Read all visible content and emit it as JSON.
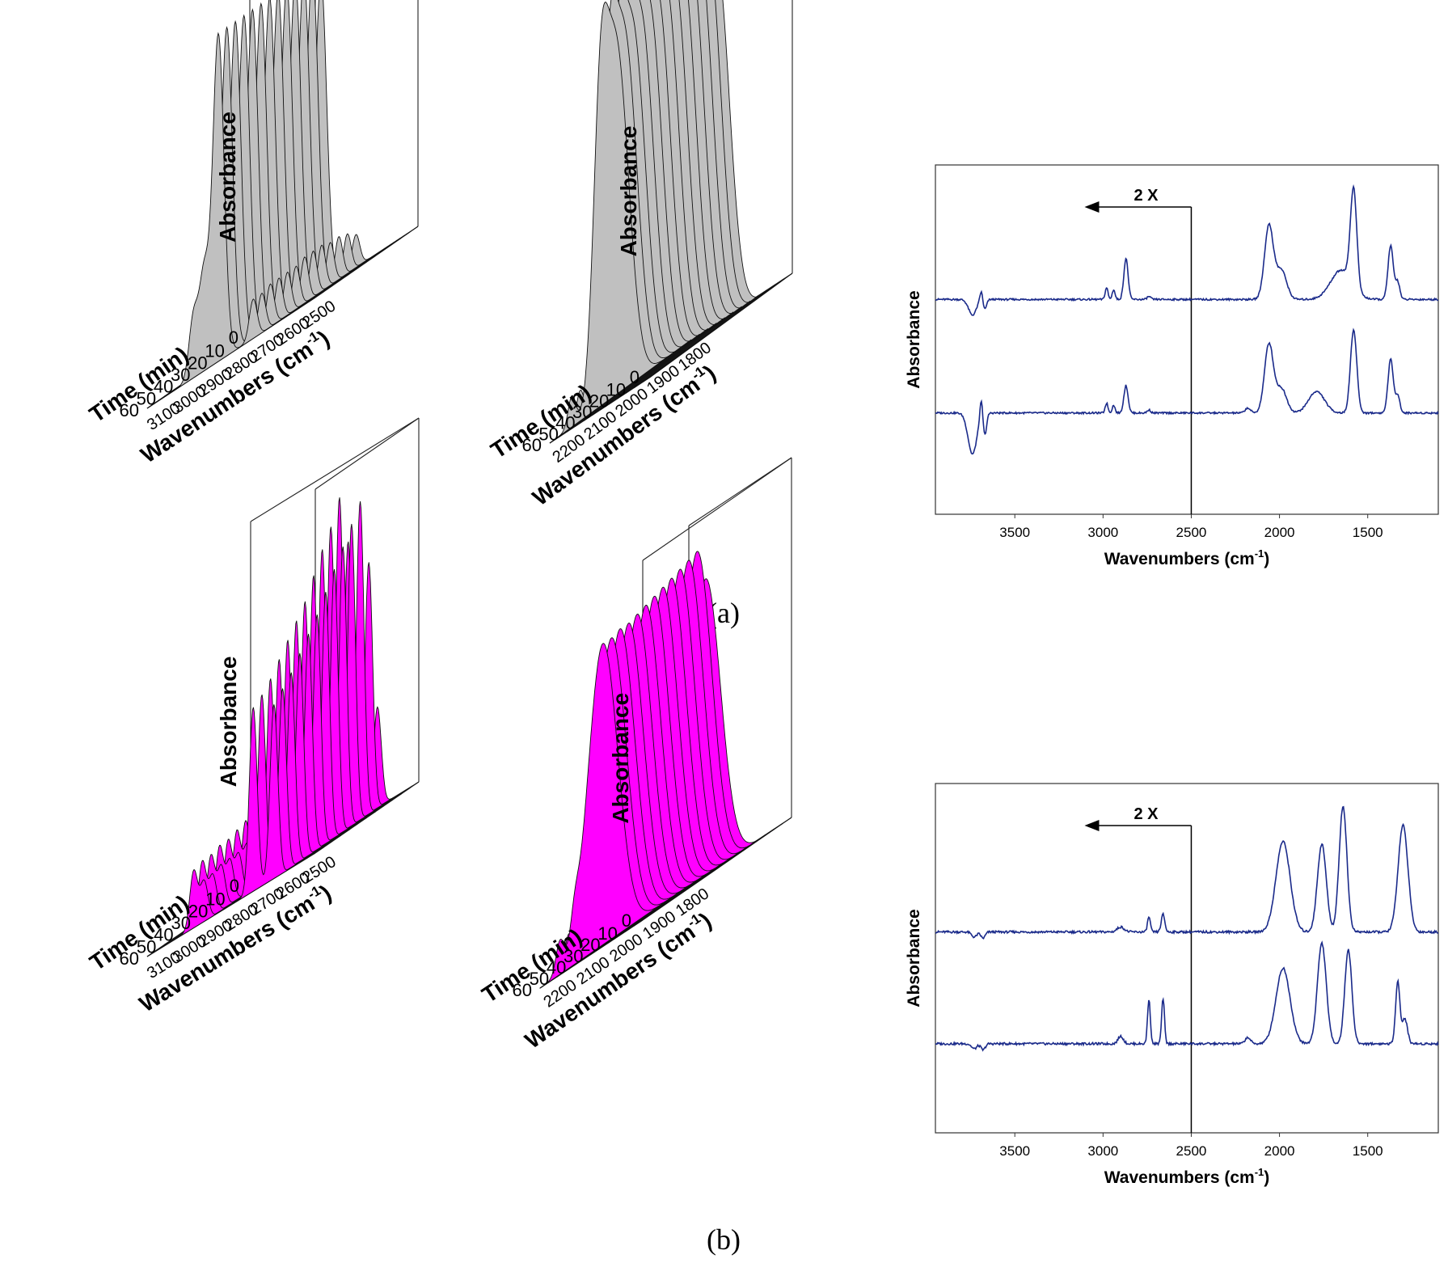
{
  "figure": {
    "captions": [
      "(a)",
      "(b)"
    ]
  },
  "chart_data": [
    {
      "id": "a1",
      "type": "waterfall-3d",
      "row": "a",
      "col": 1,
      "xlabel": "Wavenumbers (cm-1)",
      "ylabel": "Absorbance",
      "zlabel": "Time (min)",
      "x_ticks": [
        3100,
        3000,
        2900,
        2800,
        2700,
        2600,
        2500
      ],
      "time_ticks": [
        10,
        20,
        30,
        40,
        50,
        60
      ],
      "z_tick_labels": [
        "0"
      ],
      "fill_color": "#c0c0c0",
      "peaks": [
        {
          "center": 2970,
          "width": 18,
          "values": [
            0.15,
            0.18,
            0.2,
            0.21,
            0.22,
            0.22,
            0.22,
            0.22,
            0.21,
            0.21,
            0.2,
            0.2,
            0.19
          ]
        },
        {
          "center": 2930,
          "width": 18,
          "values": [
            0.22,
            0.27,
            0.3,
            0.31,
            0.32,
            0.32,
            0.31,
            0.31,
            0.3,
            0.3,
            0.29,
            0.29,
            0.28
          ]
        },
        {
          "center": 2875,
          "width": 22,
          "values": [
            0.95,
            1.0,
            1.0,
            1.0,
            1.0,
            1.0,
            1.0,
            1.0,
            1.0,
            1.0,
            1.0,
            1.0,
            1.0
          ]
        },
        {
          "center": 2740,
          "width": 15,
          "values": [
            0.1,
            0.12,
            0.13,
            0.13,
            0.14,
            0.14,
            0.14,
            0.13,
            0.13,
            0.13,
            0.13,
            0.12,
            0.12
          ]
        }
      ]
    },
    {
      "id": "a2",
      "type": "waterfall-3d",
      "row": "a",
      "col": 2,
      "xlabel": "Wavenumbers (cm-1)",
      "ylabel": "Absorbance",
      "zlabel": "Time (min)",
      "x_ticks": [
        2200,
        2100,
        2000,
        1900,
        1800
      ],
      "time_ticks": [
        10,
        20,
        30,
        40,
        50,
        60
      ],
      "z_tick_labels": [
        "0"
      ],
      "fill_color": "#c0c0c0",
      "peaks": [
        {
          "center": 2180,
          "width": 12,
          "values": [
            0.07,
            0.08,
            0.08,
            0.08,
            0.08,
            0.08,
            0.08,
            0.08,
            0.08,
            0.08,
            0.08,
            0.08,
            0.08
          ]
        },
        {
          "center": 2090,
          "width": 22,
          "values": [
            0.55,
            0.62,
            0.62,
            0.62,
            0.61,
            0.6,
            0.59,
            0.58,
            0.57,
            0.56,
            0.55,
            0.55,
            0.54
          ]
        },
        {
          "center": 2040,
          "width": 40,
          "values": [
            0.95,
            1.0,
            1.0,
            1.0,
            0.99,
            0.98,
            0.97,
            0.96,
            0.95,
            0.94,
            0.93,
            0.93,
            0.92
          ]
        }
      ]
    },
    {
      "id": "a3",
      "type": "line",
      "row": "a",
      "col": 3,
      "xlabel": "Wavenumbers (cm-1)",
      "ylabel": "Absorbance",
      "x_ticks": [
        3500,
        3000,
        2500,
        2000,
        1500
      ],
      "xlim": [
        3950,
        1100
      ],
      "annotation": "2 X",
      "divider_x": 2500,
      "series": [
        {
          "name": "upper",
          "offset": 1.0,
          "color": "#1a2a8a",
          "peaks": [
            [
              3740,
              -0.16,
              22
            ],
            [
              3690,
              0.1,
              8
            ],
            [
              3670,
              -0.1,
              10
            ],
            [
              2980,
              0.12,
              8
            ],
            [
              2940,
              0.1,
              8
            ],
            [
              2870,
              0.42,
              12
            ],
            [
              2740,
              0.03,
              10
            ],
            [
              2060,
              0.75,
              25
            ],
            [
              1990,
              0.3,
              30
            ],
            [
              1650,
              0.3,
              60
            ],
            [
              1580,
              1.0,
              18
            ],
            [
              1370,
              0.55,
              15
            ],
            [
              1330,
              0.18,
              12
            ]
          ]
        },
        {
          "name": "lower",
          "offset": 0.0,
          "color": "#1a2a8a",
          "peaks": [
            [
              3740,
              -0.42,
              25
            ],
            [
              3690,
              0.2,
              8
            ],
            [
              3670,
              -0.22,
              10
            ],
            [
              2980,
              0.1,
              8
            ],
            [
              2940,
              0.08,
              8
            ],
            [
              2870,
              0.28,
              12
            ],
            [
              2740,
              0.03,
              10
            ],
            [
              2180,
              0.05,
              15
            ],
            [
              2060,
              0.7,
              25
            ],
            [
              1990,
              0.25,
              30
            ],
            [
              1790,
              0.22,
              45
            ],
            [
              1580,
              0.85,
              18
            ],
            [
              1370,
              0.55,
              15
            ],
            [
              1330,
              0.18,
              12
            ]
          ]
        }
      ]
    },
    {
      "id": "b1",
      "type": "waterfall-3d",
      "row": "b",
      "col": 1,
      "xlabel": "Wavenumbers (cm-1)",
      "ylabel": "Absorbance",
      "zlabel": "Time (min)",
      "x_ticks": [
        3100,
        3000,
        2900,
        2800,
        2700,
        2600,
        2500
      ],
      "time_ticks": [
        10,
        20,
        30,
        40,
        50,
        60
      ],
      "z_tick_labels": [
        "0"
      ],
      "fill_color": "#ff00ff",
      "peaks": [
        {
          "center": 2970,
          "width": 15,
          "values": [
            0.12,
            0.2,
            0.22,
            0.22,
            0.22,
            0.21,
            0.21,
            0.2,
            0.19,
            0.19,
            0.18,
            0.18,
            0.17
          ]
        },
        {
          "center": 2930,
          "width": 15,
          "values": [
            0.1,
            0.14,
            0.15,
            0.15,
            0.15,
            0.14,
            0.14,
            0.14,
            0.13,
            0.13,
            0.13,
            0.12,
            0.12
          ]
        },
        {
          "center": 2740,
          "width": 15,
          "values": [
            0.35,
            0.85,
            1.0,
            0.93,
            0.88,
            0.82,
            0.76,
            0.72,
            0.68,
            0.64,
            0.6,
            0.57,
            0.55
          ]
        },
        {
          "center": 2660,
          "width": 15,
          "values": [
            0.3,
            0.75,
            0.95,
            0.9,
            0.85,
            0.8,
            0.75,
            0.7,
            0.66,
            0.62,
            0.58,
            0.55,
            0.52
          ]
        }
      ]
    },
    {
      "id": "b2",
      "type": "waterfall-3d",
      "row": "b",
      "col": 2,
      "xlabel": "Wavenumbers (cm-1)",
      "ylabel": "Absorbance",
      "zlabel": "Time (min)",
      "x_ticks": [
        2200,
        2100,
        2000,
        1900,
        1800
      ],
      "time_ticks": [
        10,
        20,
        30,
        40,
        50,
        60
      ],
      "z_tick_labels": [
        "0"
      ],
      "fill_color": "#ff00ff",
      "peaks": [
        {
          "center": 2190,
          "width": 12,
          "values": [
            0.08,
            0.09,
            0.09,
            0.09,
            0.09,
            0.09,
            0.09,
            0.09,
            0.09,
            0.09,
            0.09,
            0.09,
            0.09
          ]
        },
        {
          "center": 2145,
          "width": 12,
          "values": [
            0.06,
            0.07,
            0.07,
            0.07,
            0.07,
            0.07,
            0.07,
            0.07,
            0.07,
            0.07,
            0.07,
            0.07,
            0.07
          ]
        },
        {
          "center": 2060,
          "width": 45,
          "values": [
            0.9,
            1.0,
            0.99,
            0.98,
            0.97,
            0.96,
            0.95,
            0.94,
            0.93,
            0.92,
            0.92,
            0.91,
            0.91
          ]
        }
      ]
    },
    {
      "id": "b3",
      "type": "line",
      "row": "b",
      "col": 3,
      "xlabel": "Wavenumbers (cm-1)",
      "ylabel": "Absorbance",
      "x_ticks": [
        3500,
        3000,
        2500,
        2000,
        1500
      ],
      "xlim": [
        3950,
        1100
      ],
      "annotation": "2 X",
      "divider_x": 2500,
      "series": [
        {
          "name": "upper",
          "offset": 1.0,
          "color": "#1a2a8a",
          "peaks": [
            [
              3730,
              -0.04,
              15
            ],
            [
              3680,
              -0.05,
              12
            ],
            [
              2900,
              0.04,
              20
            ],
            [
              2740,
              0.12,
              8
            ],
            [
              2660,
              0.14,
              10
            ],
            [
              1980,
              0.72,
              40
            ],
            [
              1760,
              0.7,
              25
            ],
            [
              1640,
              1.0,
              22
            ],
            [
              1300,
              0.85,
              28
            ]
          ]
        },
        {
          "name": "lower",
          "offset": 0.0,
          "color": "#1a2a8a",
          "peaks": [
            [
              3730,
              -0.04,
              15
            ],
            [
              3680,
              -0.05,
              12
            ],
            [
              2900,
              0.06,
              15
            ],
            [
              2740,
              0.35,
              8
            ],
            [
              2660,
              0.36,
              8
            ],
            [
              2180,
              0.05,
              15
            ],
            [
              1980,
              0.6,
              40
            ],
            [
              1760,
              0.8,
              25
            ],
            [
              1610,
              0.75,
              20
            ],
            [
              1330,
              0.5,
              12
            ],
            [
              1290,
              0.2,
              15
            ]
          ]
        }
      ]
    }
  ]
}
